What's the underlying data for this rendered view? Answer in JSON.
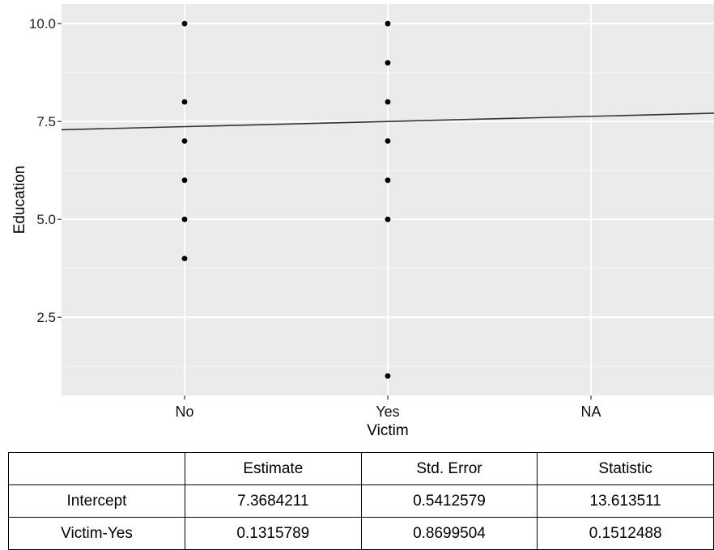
{
  "chart_data": {
    "type": "scatter",
    "title": "",
    "xlabel": "Victim",
    "ylabel": "Education",
    "categories": [
      "No",
      "Yes",
      "NA"
    ],
    "y_ticks": [
      "2.5",
      "5.0",
      "7.5",
      "10.0"
    ],
    "ylim": [
      0.5,
      10.5
    ],
    "grid": true,
    "background": "#ebebeb",
    "grid_major_color": "#ffffff",
    "point_color": "#000000",
    "line_color": "#333333",
    "points": [
      {
        "x": "No",
        "y": 10
      },
      {
        "x": "No",
        "y": 8
      },
      {
        "x": "No",
        "y": 7
      },
      {
        "x": "No",
        "y": 6
      },
      {
        "x": "No",
        "y": 5
      },
      {
        "x": "No",
        "y": 4
      },
      {
        "x": "Yes",
        "y": 10
      },
      {
        "x": "Yes",
        "y": 9
      },
      {
        "x": "Yes",
        "y": 8
      },
      {
        "x": "Yes",
        "y": 7
      },
      {
        "x": "Yes",
        "y": 6
      },
      {
        "x": "Yes",
        "y": 5
      },
      {
        "x": "Yes",
        "y": 1
      }
    ],
    "fit_line": {
      "intercept": 7.3684211,
      "slope": 0.1315789
    }
  },
  "table": {
    "headers": [
      "",
      "Estimate",
      "Std. Error",
      "Statistic"
    ],
    "rows": [
      [
        "Intercept",
        "7.3684211",
        "0.5412579",
        "13.613511"
      ],
      [
        "Victim-Yes",
        "0.1315789",
        "0.8699504",
        "0.1512488"
      ]
    ]
  }
}
